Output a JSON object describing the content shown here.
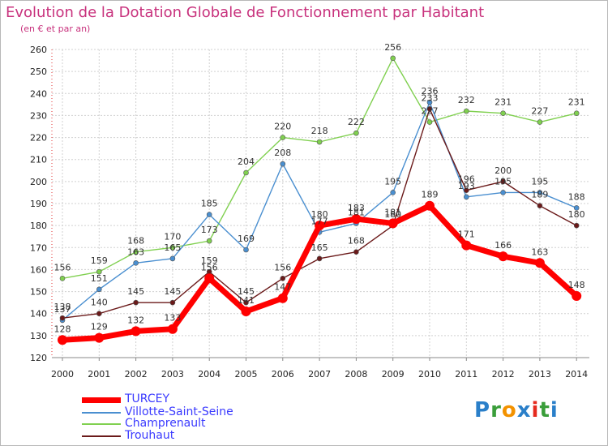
{
  "header": {
    "title": "Evolution de la Dotation Globale de Fonctionnement par Habitant",
    "subtitle": "(en € et par an)"
  },
  "logo": {
    "text": "Proxiti",
    "letters": [
      "P",
      "r",
      "o",
      "x",
      "i",
      "t",
      "i"
    ],
    "letter_colors": [
      "#2a7fc9",
      "#3a9e3a",
      "#f39200",
      "#2a7fc9",
      "#e52a1e",
      "#3a9e3a",
      "#2a7fc9"
    ]
  },
  "chart_data": {
    "type": "line",
    "title": "Evolution de la Dotation Globale de Fonctionnement par Habitant",
    "subtitle": "(en € et par an)",
    "xlabel": "",
    "ylabel": "",
    "x": [
      "2000",
      "2001",
      "2002",
      "2003",
      "2004",
      "2005",
      "2006",
      "2007",
      "2008",
      "2009",
      "2010",
      "2011",
      "2012",
      "2013",
      "2014"
    ],
    "ylim": [
      120,
      260
    ],
    "yticks": [
      120,
      130,
      140,
      150,
      160,
      170,
      180,
      190,
      200,
      210,
      220,
      230,
      240,
      250,
      260
    ],
    "grid": true,
    "legend_position": "bottom-left",
    "series": [
      {
        "name": "TURCEY",
        "color": "#ff0000",
        "values": [
          128,
          129,
          132,
          133,
          156,
          141,
          147,
          180,
          183,
          181,
          189,
          171,
          166,
          163,
          148
        ]
      },
      {
        "name": "Villotte-Saint-Seine",
        "color": "#4a8fd0",
        "values": [
          137,
          151,
          163,
          165,
          185,
          169,
          208,
          177,
          181,
          195,
          236,
          193,
          195,
          195,
          188
        ]
      },
      {
        "name": "Champrenault",
        "color": "#80d050",
        "values": [
          156,
          159,
          168,
          170,
          173,
          204,
          220,
          218,
          222,
          256,
          227,
          232,
          231,
          227,
          231
        ]
      },
      {
        "name": "Trouhaut",
        "color": "#6b1a1a",
        "values": [
          138,
          140,
          145,
          145,
          159,
          145,
          156,
          165,
          168,
          180,
          233,
          196,
          200,
          189,
          180
        ]
      }
    ]
  }
}
